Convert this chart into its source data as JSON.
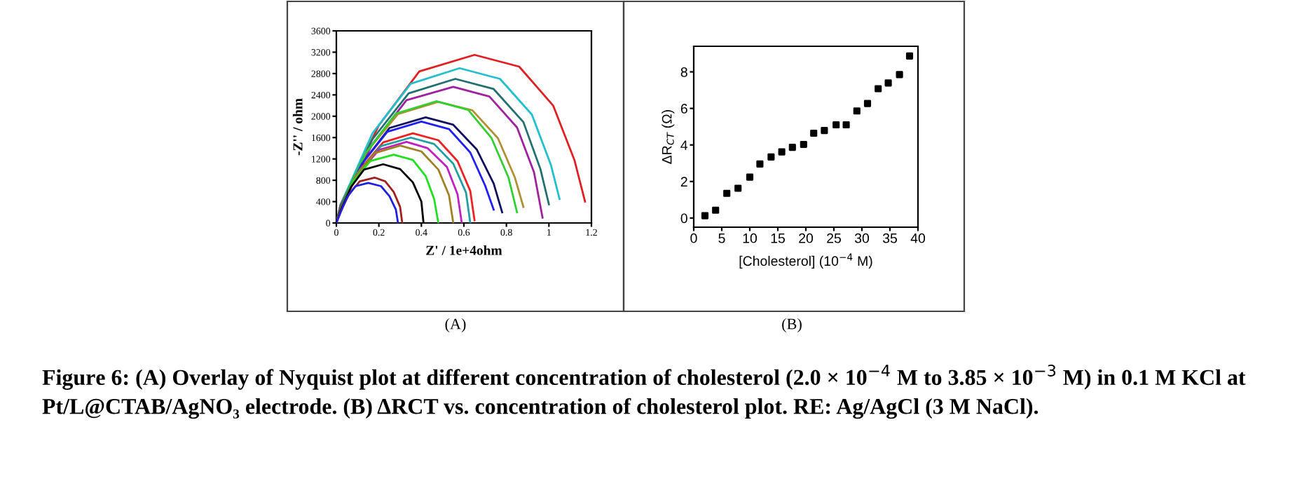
{
  "chart_data": [
    {
      "type": "line",
      "xlabel": "Z' / 1e+4ohm",
      "ylabel": "-Z'' / ohm",
      "xlim": [
        0,
        1.2
      ],
      "ylim": [
        0,
        3600
      ],
      "xticks": [
        0,
        0.2,
        0.4,
        0.6,
        0.8,
        1.0,
        1.2
      ],
      "yticks": [
        0,
        400,
        800,
        1200,
        1600,
        2000,
        2400,
        2800,
        3200,
        3600
      ],
      "grid": false,
      "legend": false,
      "marker": "none",
      "line_style": "solid",
      "annotations": [
        "(A)",
        "Figure 6: (A) Overlay of Nyquist plot at different concentration of cholesterol (2.0 × 10$^{−4}$ M to 3.85 × 10$^{−3}$ M) in 0.1 M KCl at Pt/L@CTAB/AgNO₃ electrode. (B) ΔRCT vs. concentration of cholesterol plot. RE: Ag/AgCl (3 M NaCl)."
      ],
      "series": [
        {
          "color": "#2020e0",
          "x": [
            0,
            0.02,
            0.05,
            0.09,
            0.15,
            0.21,
            0.25,
            0.28,
            0.29
          ],
          "values": [
            0,
            200,
            480,
            690,
            750,
            690,
            500,
            250,
            0
          ]
        },
        {
          "color": "#a02020",
          "x": [
            0,
            0.02,
            0.06,
            0.11,
            0.18,
            0.23,
            0.27,
            0.3,
            0.31
          ],
          "values": [
            0,
            210,
            540,
            780,
            850,
            780,
            580,
            300,
            0
          ]
        },
        {
          "color": "#000000",
          "x": [
            0,
            0.02,
            0.07,
            0.13,
            0.22,
            0.3,
            0.36,
            0.4,
            0.41
          ],
          "values": [
            0,
            240,
            680,
            1000,
            1100,
            1010,
            760,
            400,
            0
          ]
        },
        {
          "color": "#20e020",
          "x": [
            0,
            0.02,
            0.08,
            0.16,
            0.27,
            0.36,
            0.42,
            0.46,
            0.48
          ],
          "values": [
            0,
            250,
            780,
            1160,
            1280,
            1180,
            880,
            450,
            0
          ]
        },
        {
          "color": "#a08020",
          "x": [
            0,
            0.02,
            0.09,
            0.18,
            0.3,
            0.4,
            0.48,
            0.53,
            0.55
          ],
          "values": [
            0,
            260,
            870,
            1310,
            1450,
            1340,
            1000,
            520,
            0
          ]
        },
        {
          "color": "#c020c0",
          "x": [
            0,
            0.02,
            0.1,
            0.2,
            0.33,
            0.43,
            0.52,
            0.57,
            0.59
          ],
          "values": [
            0,
            260,
            910,
            1370,
            1520,
            1400,
            1050,
            540,
            0
          ]
        },
        {
          "color": "#20a0a0",
          "x": [
            0,
            0.02,
            0.1,
            0.21,
            0.35,
            0.46,
            0.55,
            0.61,
            0.63
          ],
          "values": [
            0,
            270,
            940,
            1440,
            1600,
            1480,
            1110,
            570,
            0
          ]
        },
        {
          "color": "#f02020",
          "x": [
            0,
            0.02,
            0.11,
            0.22,
            0.36,
            0.48,
            0.57,
            0.63,
            0.65
          ],
          "values": [
            0,
            280,
            1000,
            1510,
            1680,
            1550,
            1160,
            600,
            50
          ]
        },
        {
          "color": "#2020f0",
          "x": [
            0,
            0.02,
            0.12,
            0.24,
            0.4,
            0.53,
            0.63,
            0.7,
            0.74
          ],
          "values": [
            0,
            290,
            1110,
            1710,
            1900,
            1760,
            1320,
            700,
            250
          ]
        },
        {
          "color": "#101060",
          "x": [
            0,
            0.02,
            0.13,
            0.25,
            0.42,
            0.55,
            0.66,
            0.74,
            0.78
          ],
          "values": [
            0,
            300,
            1160,
            1780,
            1980,
            1840,
            1380,
            740,
            200
          ]
        },
        {
          "color": "#30d030",
          "x": [
            0,
            0.02,
            0.14,
            0.28,
            0.47,
            0.62,
            0.73,
            0.81,
            0.85
          ],
          "values": [
            0,
            310,
            1320,
            2050,
            2280,
            2120,
            1590,
            850,
            200
          ]
        },
        {
          "color": "#b09030",
          "x": [
            0,
            0.02,
            0.14,
            0.29,
            0.48,
            0.64,
            0.76,
            0.84,
            0.88
          ],
          "values": [
            0,
            310,
            1320,
            2040,
            2270,
            2110,
            1590,
            850,
            300
          ]
        },
        {
          "color": "#a020a0",
          "x": [
            0,
            0.02,
            0.17,
            0.33,
            0.55,
            0.72,
            0.85,
            0.93,
            0.97
          ],
          "values": [
            0,
            320,
            1480,
            2300,
            2550,
            2370,
            1790,
            950,
            100
          ]
        },
        {
          "color": "#207070",
          "x": [
            0,
            0.02,
            0.17,
            0.34,
            0.56,
            0.74,
            0.88,
            0.96,
            1.0
          ],
          "values": [
            0,
            330,
            1570,
            2430,
            2700,
            2510,
            1890,
            1010,
            350
          ]
        },
        {
          "color": "#20c0d0",
          "x": [
            0,
            0.02,
            0.17,
            0.35,
            0.58,
            0.77,
            0.92,
            1.01,
            1.05
          ],
          "values": [
            0,
            340,
            1680,
            2610,
            2900,
            2700,
            2030,
            1080,
            450
          ]
        },
        {
          "color": "#e02020",
          "x": [
            0,
            0.02,
            0.2,
            0.39,
            0.65,
            0.86,
            1.02,
            1.12,
            1.17
          ],
          "values": [
            0,
            350,
            1830,
            2840,
            3150,
            2930,
            2200,
            1180,
            400
          ]
        }
      ]
    },
    {
      "type": "scatter",
      "xlabel": "[Cholesterol] (10$^{−4}$ M)",
      "ylabel": "ΔR$_{CT}$ (Ω)",
      "xlim": [
        0,
        40
      ],
      "ylim": [
        -0.5,
        9.4
      ],
      "xticks": [
        0,
        5,
        10,
        15,
        20,
        25,
        30,
        35,
        40
      ],
      "yticks": [
        0,
        2,
        4,
        6,
        8
      ],
      "grid": false,
      "legend": false,
      "marker": "square",
      "annotations": [
        "(B)"
      ],
      "series": [
        {
          "color": "#000000",
          "x": [
            2.0,
            3.9,
            5.9,
            7.9,
            10.0,
            11.8,
            13.8,
            15.7,
            17.6,
            19.6,
            21.4,
            23.3,
            25.4,
            27.2,
            29.1,
            31.0,
            32.9,
            34.7,
            36.7,
            38.5
          ],
          "values": [
            0.13,
            0.43,
            1.35,
            1.63,
            2.24,
            2.96,
            3.34,
            3.62,
            3.87,
            4.03,
            4.64,
            4.79,
            5.1,
            5.1,
            5.86,
            6.27,
            7.08,
            7.39,
            7.85,
            8.87
          ]
        }
      ]
    }
  ]
}
